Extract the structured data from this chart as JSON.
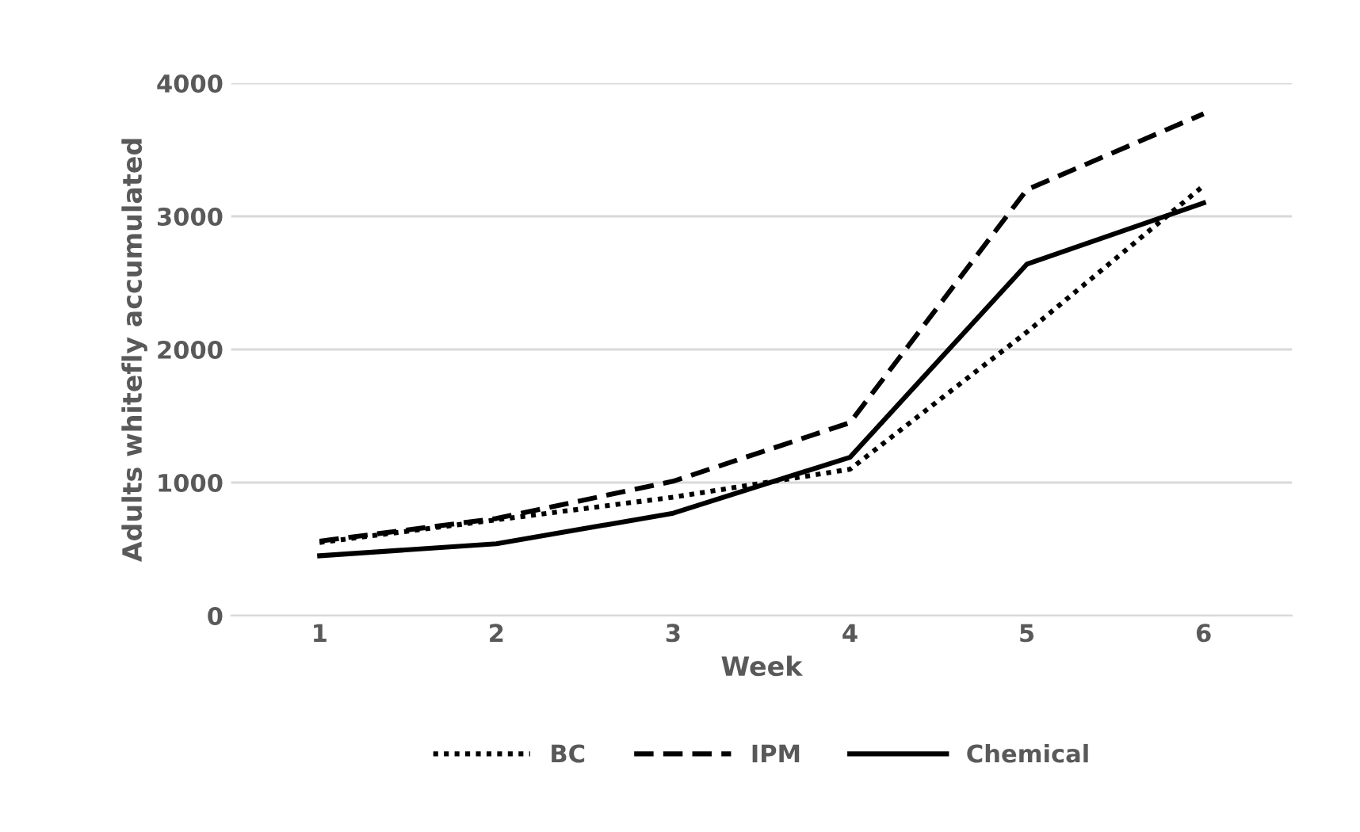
{
  "chart_data": {
    "type": "line",
    "xlabel": "Week",
    "ylabel": "Adults whitefly accumulated",
    "categories": [
      "1",
      "2",
      "3",
      "4",
      "5",
      "6"
    ],
    "series": [
      {
        "name": "BC",
        "color": "#000000",
        "line_style": "dotted",
        "values": [
          550,
          720,
          890,
          1100,
          2130,
          3230
        ]
      },
      {
        "name": "IPM",
        "color": "#000000",
        "line_style": "dashed",
        "values": [
          560,
          730,
          1010,
          1450,
          3200,
          3770
        ]
      },
      {
        "name": "Chemical",
        "color": "#000000",
        "line_style": "solid",
        "values": [
          450,
          540,
          770,
          1190,
          2640,
          3100
        ]
      }
    ],
    "ylim": [
      0,
      4000
    ],
    "yticks": [
      0,
      1000,
      2000,
      3000,
      4000
    ],
    "grid": "y",
    "legend": "bottom"
  }
}
